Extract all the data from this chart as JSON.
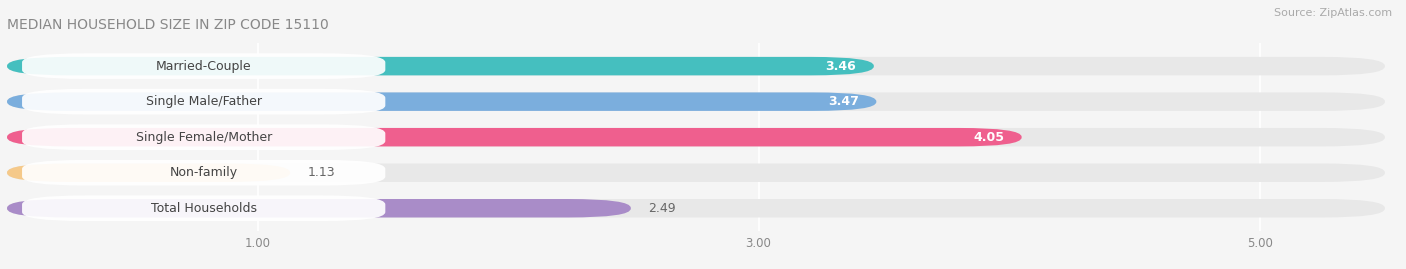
{
  "title": "MEDIAN HOUSEHOLD SIZE IN ZIP CODE 15110",
  "source": "Source: ZipAtlas.com",
  "categories": [
    "Married-Couple",
    "Single Male/Father",
    "Single Female/Mother",
    "Non-family",
    "Total Households"
  ],
  "values": [
    3.46,
    3.47,
    4.05,
    1.13,
    2.49
  ],
  "bar_colors": [
    "#45BFBF",
    "#7BAEDD",
    "#EF5F8E",
    "#F5C98A",
    "#A98CC8"
  ],
  "value_in_bar": [
    true,
    true,
    true,
    false,
    false
  ],
  "xlim_data": [
    0,
    5.5
  ],
  "xlim_display": 5.5,
  "xticks": [
    1.0,
    3.0,
    5.0
  ],
  "xticklabels": [
    "1.00",
    "3.00",
    "5.00"
  ],
  "title_fontsize": 10,
  "source_fontsize": 8,
  "bar_label_fontsize": 9,
  "cat_label_fontsize": 9,
  "background_color": "#f5f5f5",
  "bar_bg_color": "#e8e8e8",
  "bar_height": 0.52,
  "grid_color": "#ffffff",
  "label_box_color": "#ffffff"
}
